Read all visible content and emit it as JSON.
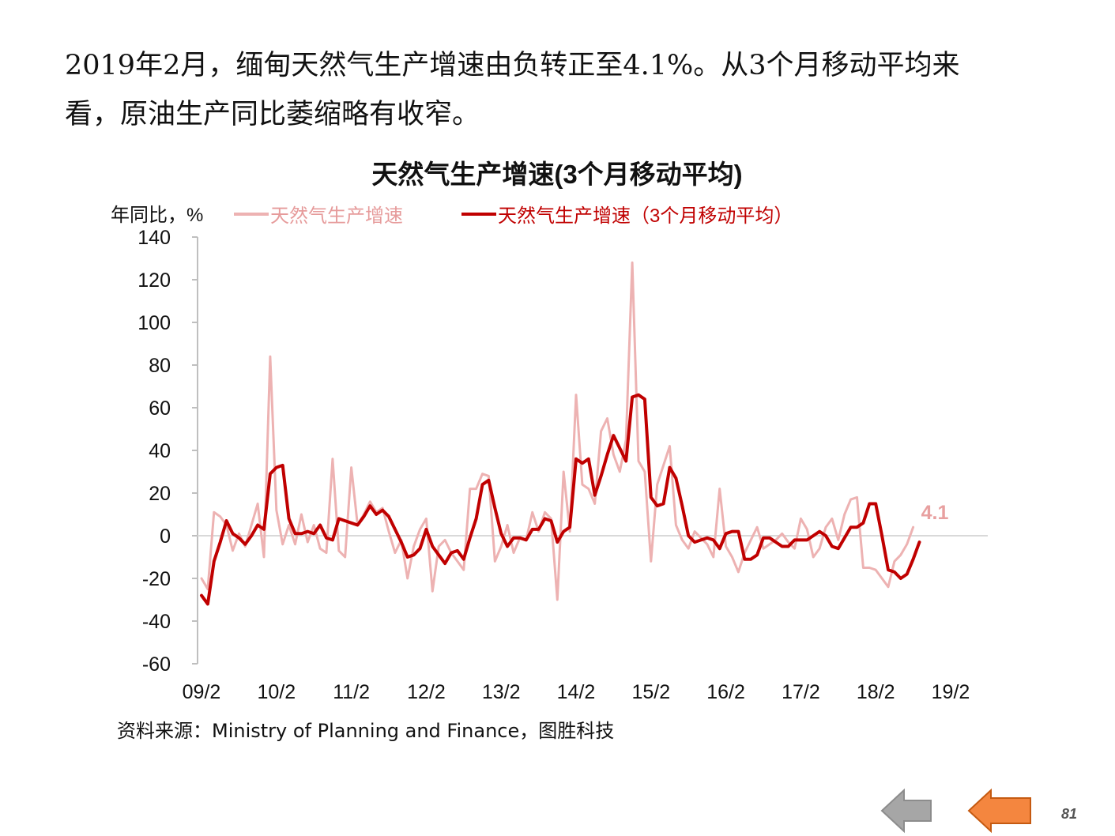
{
  "intro": {
    "line1": "2019年2月，缅甸天然气生产增速由负转正至4.1%。从3个月移动平均来",
    "line2": "看，原油生产同比萎缩略有收窄。"
  },
  "chart_data": {
    "type": "line",
    "title": "天然气生产增速(3个月移动平均)",
    "ylabel": "年同比，%",
    "xlabel": "",
    "ylim": [
      -60,
      140
    ],
    "yticks": [
      140,
      120,
      100,
      80,
      60,
      40,
      20,
      0,
      -20,
      -40,
      -60
    ],
    "xtick_labels": [
      "09/2",
      "10/2",
      "11/2",
      "12/2",
      "13/2",
      "14/2",
      "15/2",
      "16/2",
      "17/2",
      "18/2",
      "19/2"
    ],
    "grid": false,
    "legend_placement": "top",
    "colors": {
      "raw": "#edb2b2",
      "avg": "#c00000",
      "zero_line": "#d9d9d9",
      "axis": "#bfbfbf",
      "last_label": "#e8a0a0"
    },
    "series": [
      {
        "name": "天然气生产增速",
        "start": "2009-02",
        "values": [
          -20,
          -25,
          11,
          9,
          5,
          -7,
          1,
          -5,
          5,
          15,
          -10,
          84,
          12,
          -4,
          5,
          -4,
          10,
          -3,
          5,
          -6,
          -8,
          36,
          -7,
          -10,
          32,
          5,
          10,
          16,
          11,
          13,
          2,
          -8,
          -2,
          -20,
          -5,
          3,
          8,
          -26,
          -5,
          -2,
          -8,
          -12,
          -16,
          22,
          22,
          29,
          28,
          -12,
          -5,
          5,
          -8,
          -1,
          -2,
          11,
          2,
          11,
          8,
          -30,
          30,
          2,
          66,
          24,
          22,
          15,
          49,
          55,
          38,
          30,
          45,
          128,
          35,
          30,
          -12,
          24,
          33,
          42,
          5,
          -2,
          -6,
          2,
          -1,
          -4,
          -10,
          22,
          -5,
          -10,
          -17,
          -8,
          -2,
          4,
          -6,
          -4,
          -2,
          1,
          -3,
          -6,
          8,
          3,
          -10,
          -6,
          4,
          8,
          -2,
          10,
          17,
          18,
          -15,
          -15,
          -16,
          -20,
          -24,
          -12,
          -9,
          -4,
          4
        ]
      },
      {
        "name": "天然气生产增速（3个月移动平均）",
        "start": "2009-02",
        "values": [
          -28,
          -32,
          -12,
          -3,
          7,
          1,
          -1,
          -4,
          0,
          5,
          3,
          29,
          32,
          33,
          8,
          1,
          1,
          2,
          1,
          5,
          -1,
          -2,
          8,
          7,
          6,
          5,
          9,
          14,
          10,
          12,
          9,
          3,
          -3,
          -10,
          -9,
          -6,
          3,
          -5,
          -9,
          -13,
          -8,
          -7,
          -11,
          -1,
          8,
          24,
          26,
          13,
          1,
          -5,
          -1,
          -1,
          -2,
          3,
          3,
          8,
          7,
          -3,
          2,
          4,
          36,
          34,
          36,
          19,
          28,
          38,
          47,
          41,
          35,
          65,
          66,
          64,
          18,
          14,
          15,
          32,
          27,
          14,
          0,
          -3,
          -2,
          -1,
          -2,
          -6,
          1,
          2,
          2,
          -11,
          -11,
          -9,
          -1,
          -1,
          -3,
          -5,
          -5,
          -2,
          -2,
          -2,
          0,
          2,
          0,
          -5,
          -6,
          -1,
          4,
          4,
          6,
          15,
          15,
          0,
          -16,
          -17,
          -20,
          -18,
          -11,
          -3
        ]
      }
    ],
    "annotations": [
      {
        "text": "4.1"
      }
    ]
  },
  "source": "资料来源：Ministry of Planning and Finance，图胜科技",
  "nav": {
    "prev_icon": "left-arrow-gray-icon",
    "next_icon": "left-arrow-orange-icon"
  },
  "page_number": "81"
}
